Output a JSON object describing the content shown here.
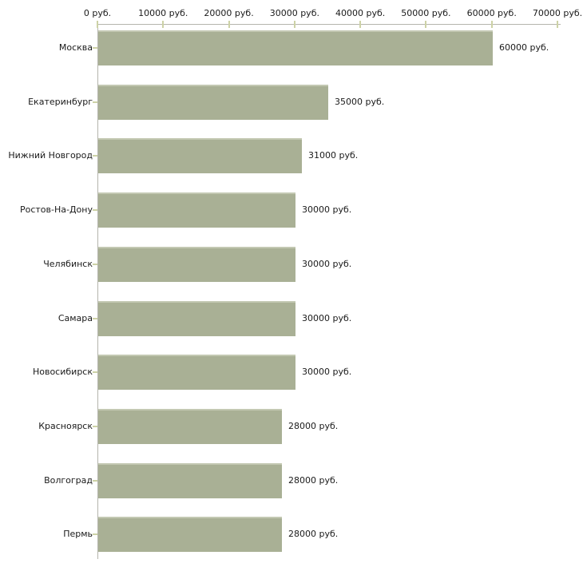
{
  "chart_data": {
    "type": "bar",
    "orientation": "horizontal",
    "categories": [
      "Москва",
      "Екатеринбург",
      "Нижний Новгород",
      "Ростов-На-Дону",
      "Челябинск",
      "Самара",
      "Новосибирск",
      "Красноярск",
      "Волгоград",
      "Пермь"
    ],
    "values": [
      60000,
      35000,
      31000,
      30000,
      30000,
      30000,
      30000,
      28000,
      28000,
      28000
    ],
    "value_labels": [
      "60000 руб.",
      "35000 руб.",
      "31000 руб.",
      "30000 руб.",
      "30000 руб.",
      "30000 руб.",
      "30000 руб.",
      "28000 руб.",
      "28000 руб.",
      "28000 руб."
    ],
    "x_axis": {
      "position": "top",
      "min": 0,
      "max": 70000,
      "ticks": [
        0,
        10000,
        20000,
        30000,
        40000,
        50000,
        60000,
        70000
      ],
      "tick_labels": [
        "0 руб.",
        "10000 руб.",
        "20000 руб.",
        "30000 руб.",
        "40000 руб.",
        "50000 руб.",
        "60000 руб.",
        "70000 руб."
      ]
    },
    "grid": false,
    "legend": false,
    "colors": {
      "bar_fill": "#a9b095",
      "bar_top_highlight": "#c3c8b2",
      "axis_line": "#b5b5ad",
      "tick_mark": "#cdd2a6",
      "label_text": "#1a1a1a",
      "background": "#ffffff"
    }
  }
}
